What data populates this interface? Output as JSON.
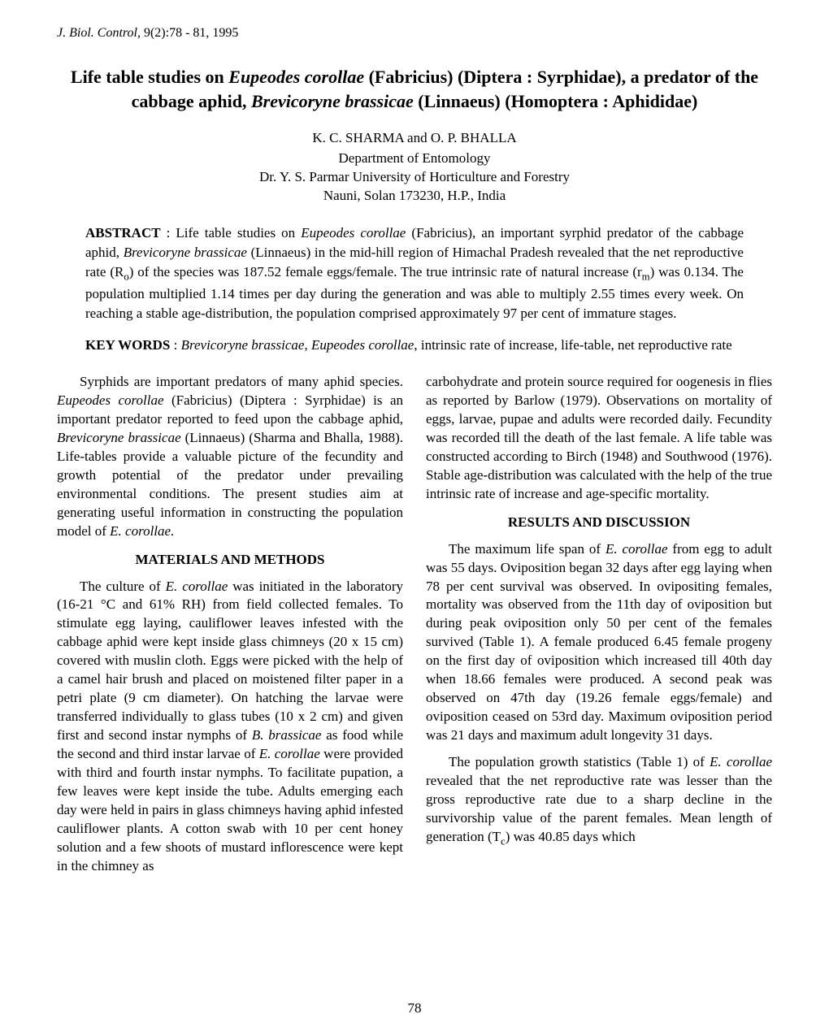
{
  "journal": {
    "name": "J. Biol. Control,",
    "volume": "9(2):78 - 81, 1995"
  },
  "title": {
    "line1_before": "Life table studies on ",
    "line1_species": "Eupeodes corollae",
    "line1_after": " (Fabricius) (Diptera : Syrphidae), a predator of the cabbage aphid, ",
    "line2_species": "Brevicoryne brassicae",
    "line2_after": " (Linnaeus) (Homoptera : Aphididae)"
  },
  "authors": "K. C. SHARMA and O. P. BHALLA",
  "affiliation": {
    "line1": "Department of Entomology",
    "line2": "Dr. Y. S. Parmar University of Horticulture and Forestry",
    "line3": "Nauni, Solan 173230, H.P., India"
  },
  "abstract": {
    "label": "ABSTRACT",
    "text_before1": " : Life table studies on ",
    "species1": "Eupeodes corollae",
    "text_mid1": " (Fabricius), an important syrphid predator of the cabbage aphid, ",
    "species2": "Brevicoryne brassicae",
    "text_after": " (Linnaeus) in the mid-hill region of Himachal Pradesh revealed that the net reproductive rate (R",
    "r_sub": "o",
    "text_after2": ") of the species was 187.52 female eggs/female. The true intrinsic rate of natural increase (r",
    "r_sub2": "m",
    "text_after3": ") was 0.134. The population multiplied 1.14 times per day during the generation and was able to multiply 2.55 times every week. On reaching a stable age-distribution, the population comprised approximately 97 per cent of immature stages."
  },
  "keywords": {
    "label": "KEY WORDS",
    "text_before": " : ",
    "species1": "Brevicoryne brassicae",
    "sep1": ", ",
    "species2": "Eupeodes corollae",
    "text_after": ", intrinsic rate of increase, life-table, net reproductive rate"
  },
  "col1": {
    "para1_before": "Syrphids are important predators of many aphid species. ",
    "para1_sp1": "Eupeodes corollae",
    "para1_mid1": " (Fabricius) (Diptera : Syrphidae) is an important predator reported to feed upon the cabbage aphid, ",
    "para1_sp2": "Brevicoryne brassicae",
    "para1_mid2": " (Linnaeus) (Sharma and Bhalla, 1988). Life-tables provide a valuable picture of the fecundity and growth potential of the predator under prevailing environmental conditions. The present studies aim at generating useful information in constructing the population model of ",
    "para1_sp3": "E. corollae.",
    "heading1": "MATERIALS AND METHODS",
    "para2_before": "The culture of ",
    "para2_sp1": "E. corollae",
    "para2_mid1": " was initiated in the laboratory (16-21 °C and 61% RH) from field collected females. To stimulate egg laying, cauliflower leaves infested with the cabbage aphid were kept inside glass chimneys (20 x 15 cm) covered with muslin cloth. Eggs were picked with the help of a camel hair brush and placed on moistened filter paper in a petri plate (9 cm diameter). On hatching the larvae were transferred individually to glass tubes (10 x 2 cm) and given first and second instar nymphs of ",
    "para2_sp2": "B. brassicae",
    "para2_mid2": " as food while the second and third instar larvae of ",
    "para2_sp3": "E. corollae",
    "para2_after": " were provided with third and fourth instar nymphs. To facilitate pupation, a few leaves were kept inside the tube. Adults emerging each day were held in pairs in glass chimneys having aphid infested cauliflower plants. A cotton swab with 10 per cent honey solution and a few shoots of mustard inflorescence were kept in the chimney as"
  },
  "col2": {
    "para1": "carbohydrate and protein source required for oogenesis in flies as reported by Barlow (1979). Observations on mortality of eggs, larvae, pupae and adults were recorded daily. Fecundity was recorded till the death of the last female. A life table was constructed according to Birch (1948) and Southwood (1976). Stable age-distribution was calculated with the help of the true intrinsic rate of increase and age-specific mortality.",
    "heading1": "RESULTS AND DISCUSSION",
    "para2_before": "The maximum life span of ",
    "para2_sp1": "E. corollae",
    "para2_after": " from egg to adult was 55 days. Oviposition began 32 days after egg laying when 78 per cent survival was observed. In ovipositing females, mortality was observed from the 11th day of oviposition but during peak oviposition only 50 per cent of the females survived (Table 1). A female produced 6.45 female progeny on the first day of oviposition which increased till 40th day when 18.66 females were produced. A second peak was observed on 47th day (19.26 female eggs/female) and oviposition ceased on 53rd day. Maximum oviposition period was 21 days and maximum adult longevity 31 days.",
    "para3_before": "The population growth statistics (Table 1) of ",
    "para3_sp1": "E. corollae",
    "para3_mid": " revealed that the net reproductive rate was lesser than the gross reproductive rate due to a sharp decline in the survivorship value of the parent females. Mean length of generation (T",
    "para3_sub": "c",
    "para3_after": ") was 40.85 days which"
  },
  "page_number": "78"
}
